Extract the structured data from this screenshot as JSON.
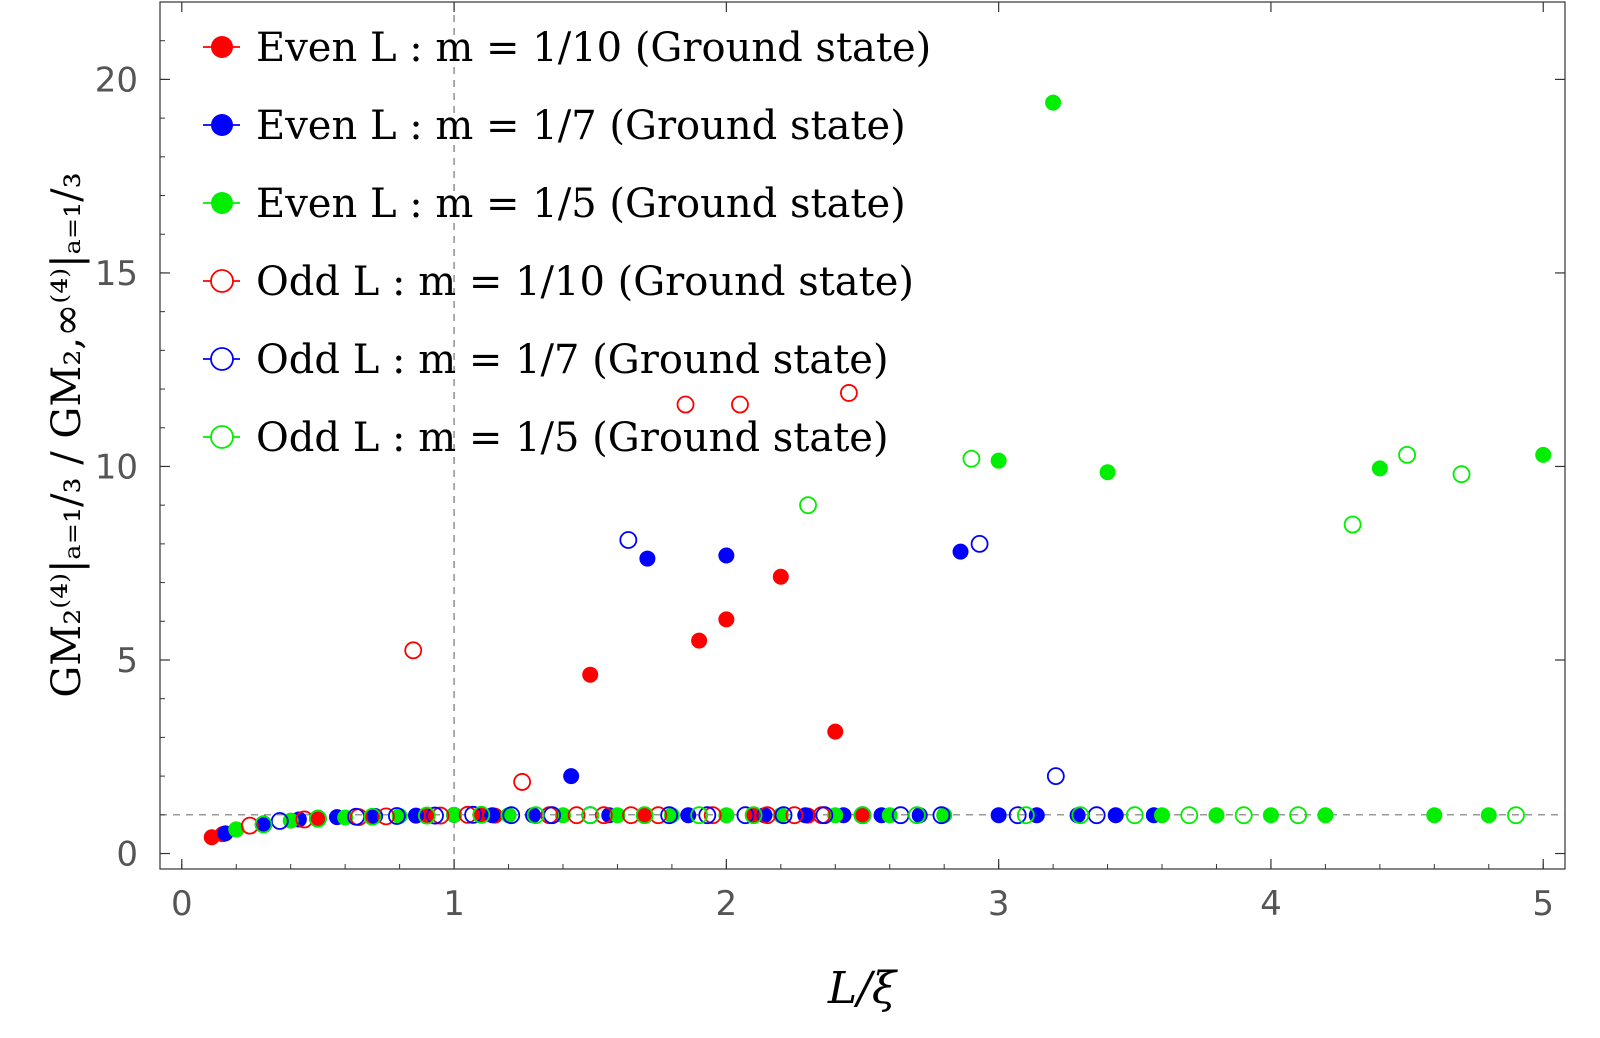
{
  "chart_data": {
    "type": "scatter",
    "xlabel": "L/ξ",
    "ylabel": "GM₂⁽⁴⁾|ₐ₌₁/₃ / GM₂,∞⁽⁴⁾|ₐ₌₁/₃",
    "xlim": [
      -0.08,
      5.08
    ],
    "ylim": [
      -0.4,
      22
    ],
    "xticks": [
      "0",
      "1",
      "2",
      "3",
      "4",
      "5"
    ],
    "yticks": [
      "0",
      "5",
      "10",
      "15",
      "20"
    ],
    "reference_lines": {
      "vertical_x": 1,
      "horizontal_y": 1
    },
    "legend_position": "top-left",
    "series": [
      {
        "name": "Even L :  m = 1/10 (Ground state)",
        "color": "#ff0000",
        "filled": true,
        "points": [
          [
            0.11,
            0.42
          ],
          [
            0.15,
            0.5
          ],
          [
            0.2,
            0.62
          ],
          [
            0.3,
            0.75
          ],
          [
            0.5,
            0.9
          ],
          [
            0.7,
            0.95
          ],
          [
            0.9,
            0.97
          ],
          [
            1.1,
            1.0
          ],
          [
            1.15,
            0.98
          ],
          [
            1.5,
            4.62
          ],
          [
            1.7,
            0.98
          ],
          [
            1.9,
            5.5
          ],
          [
            2.0,
            6.05
          ],
          [
            2.1,
            0.98
          ],
          [
            2.2,
            7.15
          ],
          [
            2.3,
            0.98
          ],
          [
            2.4,
            3.15
          ],
          [
            2.5,
            0.98
          ]
        ]
      },
      {
        "name": "Even L :  m = 1/7 (Ground state)",
        "color": "#0000ff",
        "filled": true,
        "points": [
          [
            0.16,
            0.52
          ],
          [
            0.3,
            0.78
          ],
          [
            0.43,
            0.88
          ],
          [
            0.57,
            0.94
          ],
          [
            0.71,
            0.97
          ],
          [
            0.86,
            0.98
          ],
          [
            1.0,
            1.0
          ],
          [
            1.14,
            0.99
          ],
          [
            1.29,
            0.99
          ],
          [
            1.43,
            2.0
          ],
          [
            1.57,
            0.99
          ],
          [
            1.71,
            7.62
          ],
          [
            1.86,
            0.99
          ],
          [
            2.0,
            7.7
          ],
          [
            2.14,
            0.99
          ],
          [
            2.29,
            0.99
          ],
          [
            2.43,
            0.99
          ],
          [
            2.57,
            0.99
          ],
          [
            2.71,
            0.99
          ],
          [
            2.86,
            7.8
          ],
          [
            3.0,
            0.99
          ],
          [
            3.14,
            0.99
          ],
          [
            3.29,
            0.99
          ],
          [
            3.43,
            0.99
          ],
          [
            3.57,
            0.99
          ]
        ]
      },
      {
        "name": "Even L :  m = 1/5 (Ground state)",
        "color": "#00ee00",
        "filled": true,
        "points": [
          [
            0.2,
            0.62
          ],
          [
            0.4,
            0.85
          ],
          [
            0.6,
            0.93
          ],
          [
            0.8,
            0.97
          ],
          [
            1.0,
            1.0
          ],
          [
            1.2,
            0.99
          ],
          [
            1.4,
            0.99
          ],
          [
            1.6,
            0.99
          ],
          [
            1.8,
            0.99
          ],
          [
            2.0,
            0.99
          ],
          [
            2.2,
            0.99
          ],
          [
            2.4,
            0.99
          ],
          [
            2.6,
            0.99
          ],
          [
            2.8,
            0.99
          ],
          [
            3.0,
            10.15
          ],
          [
            3.2,
            19.4
          ],
          [
            3.4,
            9.85
          ],
          [
            3.6,
            0.99
          ],
          [
            3.8,
            0.99
          ],
          [
            4.0,
            0.99
          ],
          [
            4.2,
            0.99
          ],
          [
            4.4,
            9.95
          ],
          [
            4.6,
            0.99
          ],
          [
            4.8,
            0.99
          ],
          [
            5.0,
            10.3
          ]
        ]
      },
      {
        "name": "Odd L :  m = 1/10 (Ground state)",
        "color": "#ff0000",
        "filled": false,
        "points": [
          [
            0.25,
            0.72
          ],
          [
            0.45,
            0.88
          ],
          [
            0.65,
            0.94
          ],
          [
            0.75,
            0.96
          ],
          [
            0.85,
            5.25
          ],
          [
            0.95,
            0.98
          ],
          [
            1.05,
            1.0
          ],
          [
            1.25,
            1.85
          ],
          [
            1.35,
            0.99
          ],
          [
            1.45,
            0.99
          ],
          [
            1.55,
            0.99
          ],
          [
            1.65,
            0.99
          ],
          [
            1.75,
            0.99
          ],
          [
            1.85,
            11.6
          ],
          [
            1.95,
            0.99
          ],
          [
            2.05,
            11.6
          ],
          [
            2.15,
            0.99
          ],
          [
            2.25,
            0.99
          ],
          [
            2.35,
            0.99
          ],
          [
            2.45,
            11.9
          ]
        ]
      },
      {
        "name": "Odd L :  m = 1/7 (Ground state)",
        "color": "#0000ff",
        "filled": false,
        "points": [
          [
            0.36,
            0.84
          ],
          [
            0.5,
            0.9
          ],
          [
            0.64,
            0.95
          ],
          [
            0.79,
            0.97
          ],
          [
            0.93,
            0.98
          ],
          [
            1.07,
            1.0
          ],
          [
            1.21,
            0.99
          ],
          [
            1.36,
            0.99
          ],
          [
            1.5,
            0.99
          ],
          [
            1.64,
            8.1
          ],
          [
            1.79,
            0.99
          ],
          [
            1.93,
            0.99
          ],
          [
            2.07,
            0.99
          ],
          [
            2.21,
            0.99
          ],
          [
            2.36,
            0.99
          ],
          [
            2.5,
            0.99
          ],
          [
            2.64,
            0.99
          ],
          [
            2.79,
            0.99
          ],
          [
            2.93,
            8.0
          ],
          [
            3.07,
            0.99
          ],
          [
            3.21,
            2.0
          ],
          [
            3.36,
            0.99
          ]
        ]
      },
      {
        "name": "Odd L :  m = 1/5 (Ground state)",
        "color": "#00ee00",
        "filled": false,
        "points": [
          [
            0.3,
            0.75
          ],
          [
            0.5,
            0.9
          ],
          [
            0.7,
            0.95
          ],
          [
            0.9,
            0.98
          ],
          [
            1.1,
            1.0
          ],
          [
            1.3,
            0.99
          ],
          [
            1.5,
            0.99
          ],
          [
            1.7,
            0.99
          ],
          [
            1.9,
            0.99
          ],
          [
            2.1,
            0.99
          ],
          [
            2.3,
            9.0
          ],
          [
            2.5,
            0.99
          ],
          [
            2.7,
            0.99
          ],
          [
            2.9,
            10.2
          ],
          [
            3.1,
            0.99
          ],
          [
            3.3,
            0.99
          ],
          [
            3.5,
            0.99
          ],
          [
            3.7,
            0.99
          ],
          [
            3.9,
            0.99
          ],
          [
            4.1,
            0.99
          ],
          [
            4.3,
            8.5
          ],
          [
            4.5,
            10.3
          ],
          [
            4.7,
            9.8
          ],
          [
            4.9,
            0.99
          ]
        ]
      }
    ]
  }
}
